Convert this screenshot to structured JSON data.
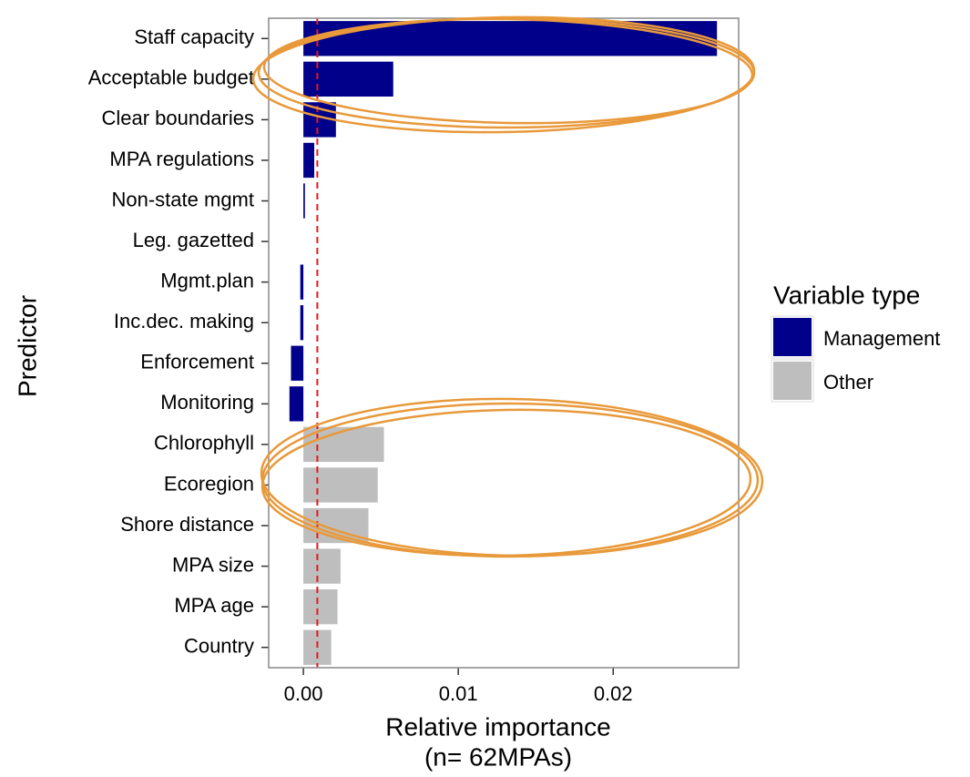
{
  "chart_data": {
    "type": "barh",
    "xlabel": "Relative importance",
    "xlabel2": "(n= 62MPAs)",
    "ylabel": "Predictor",
    "legend_title": "Variable type",
    "categories": [
      "Staff capacity",
      "Acceptable budget",
      "Clear boundaries",
      "MPA regulations",
      "Non-state mgmt",
      "Leg. gazetted",
      "Mgmt.plan",
      "Inc.dec. making",
      "Enforcement",
      "Monitoring",
      "Chlorophyll",
      "Ecoregion",
      "Shore distance",
      "MPA size",
      "MPA age",
      "Country"
    ],
    "series": [
      {
        "name": "Management",
        "color": "#00008b",
        "values": [
          0.0267,
          0.0058,
          0.0021,
          0.0007,
          0.0001,
          0,
          -0.0002,
          -0.0002,
          -0.0008,
          -0.0009,
          null,
          null,
          null,
          null,
          null,
          null
        ]
      },
      {
        "name": "Other",
        "color": "#bebebe",
        "values": [
          null,
          null,
          null,
          null,
          null,
          null,
          null,
          null,
          null,
          null,
          0.0052,
          0.0048,
          0.0042,
          0.0024,
          0.0022,
          0.0018
        ]
      }
    ],
    "reference_line": 0.0009,
    "reference_color": "#e31a1c",
    "xlim": [
      -0.00224,
      0.0281
    ],
    "xticks": [
      {
        "value": 0,
        "label": "0.00"
      },
      0.01,
      0.02
    ],
    "legend": "right"
  }
}
